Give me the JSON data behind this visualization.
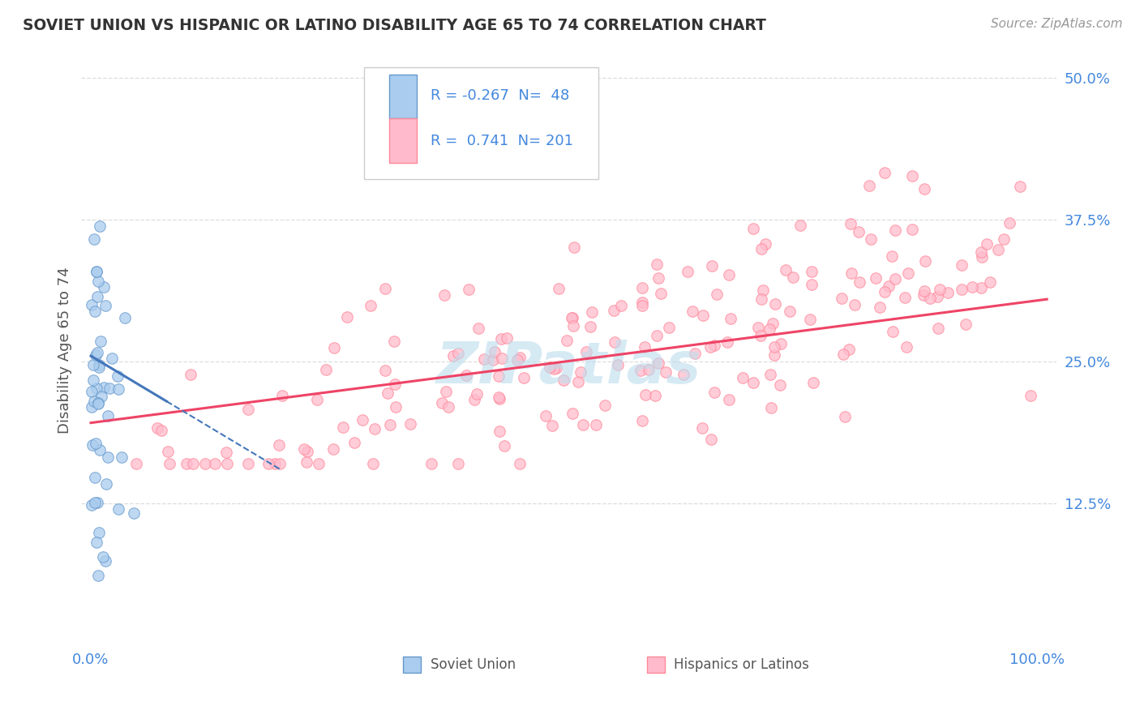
{
  "title": "SOVIET UNION VS HISPANIC OR LATINO DISABILITY AGE 65 TO 74 CORRELATION CHART",
  "source_text": "Source: ZipAtlas.com",
  "ylabel": "Disability Age 65 to 74",
  "xlim": [
    -0.01,
    1.02
  ],
  "ylim": [
    0.0,
    0.52
  ],
  "yticks": [
    0.125,
    0.25,
    0.375,
    0.5
  ],
  "ytick_labels": [
    "12.5%",
    "25.0%",
    "37.5%",
    "50.0%"
  ],
  "xticks": [
    0.0,
    1.0
  ],
  "xtick_labels": [
    "0.0%",
    "100.0%"
  ],
  "r_soviet": -0.267,
  "n_soviet": 48,
  "r_hispanic": 0.741,
  "n_hispanic": 201,
  "color_soviet_fill": "#AACCEE",
  "color_soviet_edge": "#6699CC",
  "color_hispanic_fill": "#FFBBCC",
  "color_hispanic_edge": "#FF8899",
  "color_trendline_soviet": "#4477BB",
  "color_trendline_hispanic": "#EE4466",
  "color_title": "#333333",
  "color_axis_labels": "#4488DD",
  "color_source": "#999999",
  "background_color": "#FFFFFF",
  "watermark_text": "ZIPatlas",
  "watermark_color": "#BBDDEE",
  "legend_label_soviet": "Soviet Union",
  "legend_label_hispanic": "Hispanics or Latinos",
  "grid_color": "#DDDDDD",
  "soviet_trendline_x0": 0.0,
  "soviet_trendline_x1": 0.08,
  "soviet_trendline_y0": 0.255,
  "soviet_trendline_y1": 0.215,
  "soviet_trendline_dash_x0": 0.08,
  "soviet_trendline_dash_x1": 0.2,
  "soviet_trendline_dash_y0": 0.215,
  "soviet_trendline_dash_y1": 0.155,
  "hispanic_trendline_x0": 0.0,
  "hispanic_trendline_x1": 1.01,
  "hispanic_trendline_y0": 0.196,
  "hispanic_trendline_y1": 0.305
}
